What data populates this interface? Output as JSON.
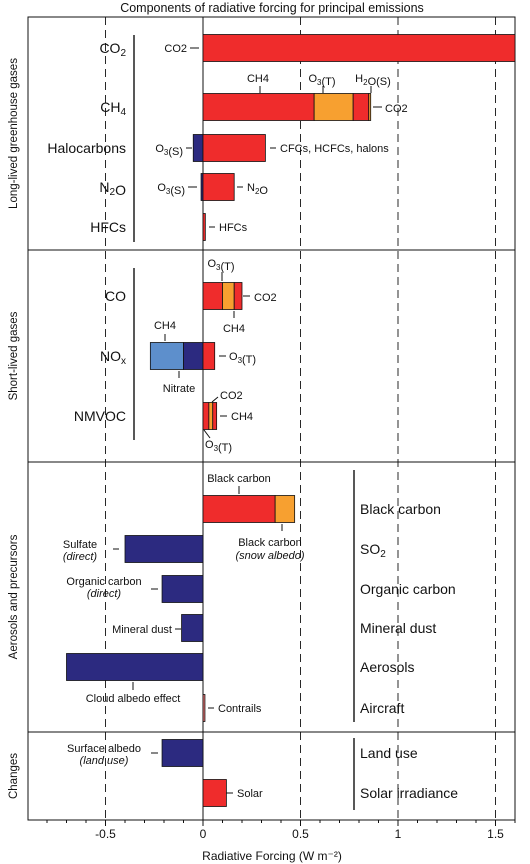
{
  "chart_data": {
    "type": "bar",
    "orientation": "horizontal-stacked",
    "title": "Components of radiative forcing for principal emissions",
    "xlabel": "Radiative Forcing  (W m⁻²)",
    "xlim": [
      -0.85,
      1.6
    ],
    "xticks": [
      -0.5,
      0,
      0.5,
      1,
      1.5
    ],
    "xtick_labels": [
      "-0.5",
      "0",
      "0.5",
      "1",
      "1.5"
    ],
    "colors": {
      "red": "#ef2c2c",
      "orange": "#f7a030",
      "navy": "#2c2a80",
      "lightblue": "#5d8fcc",
      "lightred": "#f07878"
    },
    "sections": [
      {
        "name": "Long-lived greenhouse gases",
        "rows": [
          {
            "label": "CO2",
            "label_main": "CO",
            "label_sub": "2",
            "segments": [
              {
                "component": "CO2",
                "from": 0,
                "to": 1.6,
                "color": "red"
              }
            ]
          },
          {
            "label": "CH4",
            "label_main": "CH",
            "label_sub": "4",
            "segments": [
              {
                "component": "CH4",
                "from": 0,
                "to": 0.57,
                "color": "red"
              },
              {
                "component": "O3(T)",
                "from": 0.57,
                "to": 0.77,
                "color": "orange"
              },
              {
                "component": "H2O(S)",
                "from": 0.77,
                "to": 0.85,
                "color": "red"
              },
              {
                "component": "CO2",
                "from": 0.85,
                "to": 0.86,
                "color": "orange"
              }
            ]
          },
          {
            "label": "Halocarbons",
            "segments": [
              {
                "component": "O3(S)",
                "from": -0.05,
                "to": 0,
                "color": "navy"
              },
              {
                "component": "CFCs, HCFCs, halons",
                "from": 0,
                "to": 0.32,
                "color": "red"
              }
            ]
          },
          {
            "label": "N2O",
            "label_main": "N",
            "label_sub": "2",
            "label_tail": "O",
            "segments": [
              {
                "component": "O3(S)",
                "from": -0.01,
                "to": 0,
                "color": "navy"
              },
              {
                "component": "N2O",
                "from": 0,
                "to": 0.16,
                "color": "red"
              }
            ]
          },
          {
            "label": "HFCs",
            "segments": [
              {
                "component": "HFCs",
                "from": 0,
                "to": 0.012,
                "color": "red"
              }
            ]
          }
        ]
      },
      {
        "name": "Short-lived gases",
        "rows": [
          {
            "label": "CO",
            "segments": [
              {
                "component": "CO2",
                "from": 0,
                "to": 0.1,
                "color": "red"
              },
              {
                "component": "O3(T)",
                "from": 0.1,
                "to": 0.16,
                "color": "orange"
              },
              {
                "component": "CH4",
                "from": 0.16,
                "to": 0.2,
                "color": "red"
              }
            ]
          },
          {
            "label": "NOx",
            "label_main": "NO",
            "label_sub": "x",
            "segments": [
              {
                "component": "CH4",
                "from": -0.27,
                "to": -0.1,
                "color": "lightblue"
              },
              {
                "component": "Nitrate",
                "from": -0.1,
                "to": 0,
                "color": "navy"
              },
              {
                "component": "O3(T)",
                "from": 0,
                "to": 0.06,
                "color": "red"
              }
            ]
          },
          {
            "label": "NMVOC",
            "segments": [
              {
                "component": "O3(T)",
                "from": 0,
                "to": 0.03,
                "color": "red"
              },
              {
                "component": "CO2",
                "from": 0.03,
                "to": 0.05,
                "color": "orange"
              },
              {
                "component": "CH4",
                "from": 0.05,
                "to": 0.07,
                "color": "red"
              }
            ]
          }
        ]
      },
      {
        "name": "Aerosols and precursors",
        "rows": [
          {
            "label": "Black carbon",
            "segments": [
              {
                "component": "Black carbon",
                "from": 0,
                "to": 0.37,
                "color": "red"
              },
              {
                "component": "Black carbon (snow albedo)",
                "from": 0.37,
                "to": 0.47,
                "color": "orange"
              }
            ]
          },
          {
            "label": "SO2",
            "label_main": "SO",
            "label_sub": "2",
            "segments": [
              {
                "component": "Sulfate (direct)",
                "from": -0.4,
                "to": 0,
                "color": "navy"
              }
            ]
          },
          {
            "label": "Organic carbon",
            "segments": [
              {
                "component": "Organic carbon (direct)",
                "from": -0.21,
                "to": 0,
                "color": "navy"
              }
            ]
          },
          {
            "label": "Mineral dust",
            "segments": [
              {
                "component": "Mineral dust",
                "from": -0.11,
                "to": 0,
                "color": "navy"
              }
            ]
          },
          {
            "label": "Aerosols",
            "segments": [
              {
                "component": "Cloud albedo effect",
                "from": -0.7,
                "to": 0,
                "color": "navy"
              }
            ]
          },
          {
            "label": "Aircraft",
            "segments": [
              {
                "component": "Contrails",
                "from": 0,
                "to": 0.01,
                "color": "lightred"
              }
            ]
          }
        ]
      },
      {
        "name": "Changes",
        "rows": [
          {
            "label": "Land use",
            "segments": [
              {
                "component": "Surface albedo (land use)",
                "from": -0.21,
                "to": 0,
                "color": "navy"
              }
            ]
          },
          {
            "label": "Solar irradiance",
            "segments": [
              {
                "component": "Solar",
                "from": 0,
                "to": 0.12,
                "color": "red"
              }
            ]
          }
        ]
      }
    ],
    "annotations": {
      "co2_left": "CO2",
      "ch4_top": "CH4",
      "o3t_top": "O3(T)",
      "h2os_top": "H2O(S)",
      "co2_right": "CO2",
      "halo_left": "O3(S)",
      "halo_right": "CFCs, HCFCs, halons",
      "n2o_left": "O3(S)",
      "n2o_right": "N2O",
      "hfc_right": "HFCs",
      "co_top": "O3(T)",
      "co_right": "CO2",
      "co_below": "CH4",
      "nox_top": "CH4",
      "nox_right": "O3(T)",
      "nox_below": "Nitrate",
      "nmvoc_top": "CO2",
      "nmvoc_right": "CH4",
      "nmvoc_below": "O3(T)",
      "bc_top": "Black carbon",
      "bc_below_1": "Black carbon",
      "bc_below_2": "(snow albedo)",
      "sulfate_1": "Sulfate",
      "sulfate_2": "(direct)",
      "oc_1": "Organic carbon",
      "oc_2": "(direct)",
      "dust": "Mineral dust",
      "cloud": "Cloud albedo effect",
      "contrails": "Contrails",
      "surf_1": "Surface albedo",
      "surf_2": "(land use)",
      "solar": "Solar"
    }
  }
}
